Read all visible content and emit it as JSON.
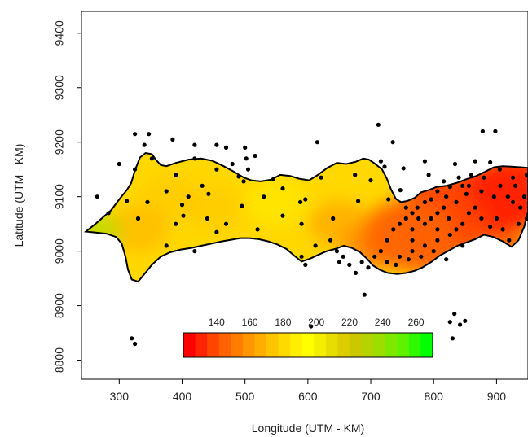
{
  "map": {
    "xlabel": "Longitude (UTM - KM)",
    "ylabel": "Latitude (UTM - KM)",
    "x_ticks": [
      300,
      400,
      500,
      600,
      700,
      800,
      900
    ],
    "y_ticks": [
      8800,
      8900,
      9000,
      9100,
      9200,
      9300,
      9400
    ],
    "x_tick_labels": [
      "300",
      "400",
      "500",
      "600",
      "700",
      "800",
      "900"
    ],
    "y_tick_labels": [
      "8800",
      "8900",
      "9000",
      "9100",
      "9200",
      "9300",
      "9400"
    ],
    "xlim": [
      240,
      950
    ],
    "ylim": [
      8765,
      9440
    ],
    "region_color_low": "#ff3b00",
    "region_color_high": "#ffd800",
    "region_outline_color": "#000000",
    "station_color": "#000000"
  },
  "legend": {
    "labels": [
      "140",
      "160",
      "180",
      "200",
      "220",
      "240",
      "260"
    ],
    "label_values": [
      140,
      160,
      180,
      200,
      220,
      240,
      260
    ],
    "range": [
      120,
      270
    ],
    "colors": [
      "#ff0000",
      "#ff2400",
      "#ff4600",
      "#ff6200",
      "#ff7c00",
      "#ff9500",
      "#ffad00",
      "#ffc400",
      "#ffda00",
      "#ffee00",
      "#ffff00",
      "#f4ef00",
      "#e8dd00",
      "#ddcc00",
      "#ccc800",
      "#b5d300",
      "#9cde00",
      "#7ee900",
      "#5ef200",
      "#2ff900",
      "#00ff00"
    ]
  },
  "chart_data": {
    "type": "scatter",
    "xlabel": "Longitude (UTM - KM)",
    "ylabel": "Latitude (UTM - KM)",
    "xlim": [
      240,
      950
    ],
    "ylim": [
      8765,
      9440
    ],
    "boundary": [
      [
        247,
        9036
      ],
      [
        262,
        9050
      ],
      [
        287,
        9075
      ],
      [
        302,
        9098
      ],
      [
        312,
        9112
      ],
      [
        319,
        9125
      ],
      [
        325,
        9148
      ],
      [
        333,
        9172
      ],
      [
        342,
        9180
      ],
      [
        352,
        9178
      ],
      [
        358,
        9168
      ],
      [
        366,
        9158
      ],
      [
        375,
        9156
      ],
      [
        390,
        9162
      ],
      [
        410,
        9168
      ],
      [
        430,
        9170
      ],
      [
        448,
        9166
      ],
      [
        466,
        9156
      ],
      [
        482,
        9146
      ],
      [
        498,
        9135
      ],
      [
        510,
        9130
      ],
      [
        525,
        9128
      ],
      [
        541,
        9131
      ],
      [
        556,
        9140
      ],
      [
        572,
        9138
      ],
      [
        586,
        9133
      ],
      [
        602,
        9130
      ],
      [
        616,
        9140
      ],
      [
        631,
        9153
      ],
      [
        646,
        9162
      ],
      [
        661,
        9160
      ],
      [
        676,
        9164
      ],
      [
        688,
        9170
      ],
      [
        697,
        9168
      ],
      [
        705,
        9162
      ],
      [
        718,
        9150
      ],
      [
        726,
        9132
      ],
      [
        732,
        9114
      ],
      [
        740,
        9096
      ],
      [
        748,
        9090
      ],
      [
        758,
        9092
      ],
      [
        770,
        9098
      ],
      [
        780,
        9108
      ],
      [
        792,
        9112
      ],
      [
        805,
        9118
      ],
      [
        820,
        9120
      ],
      [
        836,
        9125
      ],
      [
        852,
        9132
      ],
      [
        868,
        9138
      ],
      [
        882,
        9146
      ],
      [
        896,
        9154
      ],
      [
        910,
        9156
      ],
      [
        924,
        9155
      ],
      [
        938,
        9154
      ],
      [
        950,
        9153
      ],
      [
        950,
        9072
      ],
      [
        944,
        9045
      ],
      [
        935,
        9020
      ],
      [
        924,
        9008
      ],
      [
        910,
        9018
      ],
      [
        895,
        9026
      ],
      [
        880,
        9030
      ],
      [
        866,
        9022
      ],
      [
        852,
        9016
      ],
      [
        838,
        9010
      ],
      [
        824,
        9001
      ],
      [
        810,
        8992
      ],
      [
        796,
        8980
      ],
      [
        782,
        8970
      ],
      [
        770,
        8964
      ],
      [
        757,
        8960
      ],
      [
        742,
        8958
      ],
      [
        727,
        8960
      ],
      [
        714,
        8966
      ],
      [
        703,
        8974
      ],
      [
        695,
        8985
      ],
      [
        683,
        8998
      ],
      [
        670,
        9006
      ],
      [
        657,
        9010
      ],
      [
        643,
        9004
      ],
      [
        630,
        9000
      ],
      [
        616,
        8993
      ],
      [
        603,
        8986
      ],
      [
        590,
        8981
      ],
      [
        578,
        8992
      ],
      [
        566,
        9004
      ],
      [
        552,
        9012
      ],
      [
        537,
        9018
      ],
      [
        522,
        9022
      ],
      [
        507,
        9024
      ],
      [
        492,
        9024
      ],
      [
        478,
        9021
      ],
      [
        463,
        9018
      ],
      [
        447,
        9014
      ],
      [
        431,
        9010
      ],
      [
        415,
        9006
      ],
      [
        398,
        9003
      ],
      [
        381,
        8998
      ],
      [
        366,
        8990
      ],
      [
        352,
        8975
      ],
      [
        340,
        8958
      ],
      [
        330,
        8944
      ],
      [
        320,
        8948
      ],
      [
        314,
        8966
      ],
      [
        310,
        8990
      ],
      [
        304,
        9014
      ],
      [
        295,
        9026
      ],
      [
        280,
        9032
      ],
      [
        264,
        9034
      ]
    ],
    "hotspots": [
      {
        "x": 880,
        "y": 9090,
        "value": 130
      },
      {
        "x": 820,
        "y": 9070,
        "value": 135
      },
      {
        "x": 930,
        "y": 9110,
        "value": 130
      },
      {
        "x": 760,
        "y": 9030,
        "value": 140
      },
      {
        "x": 700,
        "y": 9010,
        "value": 145
      },
      {
        "x": 650,
        "y": 9050,
        "value": 160
      },
      {
        "x": 550,
        "y": 9090,
        "value": 185
      },
      {
        "x": 450,
        "y": 9080,
        "value": 175
      },
      {
        "x": 380,
        "y": 9100,
        "value": 170
      },
      {
        "x": 330,
        "y": 9040,
        "value": 165
      },
      {
        "x": 255,
        "y": 9036,
        "value": 240
      }
    ],
    "stations": [
      [
        265,
        9100
      ],
      [
        283,
        9070
      ],
      [
        300,
        9160
      ],
      [
        325,
        9215
      ],
      [
        347,
        9215
      ],
      [
        340,
        9195
      ],
      [
        312,
        9092
      ],
      [
        330,
        9060
      ],
      [
        352,
        9170
      ],
      [
        385,
        9205
      ],
      [
        325,
        9150
      ],
      [
        345,
        9090
      ],
      [
        375,
        9110
      ],
      [
        390,
        9140
      ],
      [
        402,
        9065
      ],
      [
        390,
        9050
      ],
      [
        375,
        9010
      ],
      [
        400,
        9085
      ],
      [
        410,
        9100
      ],
      [
        420,
        9195
      ],
      [
        420,
        9170
      ],
      [
        432,
        9120
      ],
      [
        442,
        9105
      ],
      [
        440,
        9060
      ],
      [
        420,
        9000
      ],
      [
        455,
        9195
      ],
      [
        470,
        9190
      ],
      [
        455,
        9150
      ],
      [
        480,
        9160
      ],
      [
        490,
        9137
      ],
      [
        498,
        9128
      ],
      [
        500,
        9190
      ],
      [
        502,
        9170
      ],
      [
        505,
        9150
      ],
      [
        495,
        9083
      ],
      [
        516,
        9175
      ],
      [
        530,
        9100
      ],
      [
        545,
        9132
      ],
      [
        560,
        9115
      ],
      [
        588,
        9090
      ],
      [
        590,
        9050
      ],
      [
        615,
        9200
      ],
      [
        621,
        9135
      ],
      [
        640,
        9060
      ],
      [
        612,
        9010
      ],
      [
        590,
        8990
      ],
      [
        596,
        8975
      ],
      [
        605,
        8862
      ],
      [
        636,
        8836
      ],
      [
        675,
        9140
      ],
      [
        680,
        9092
      ],
      [
        700,
        9130
      ],
      [
        712,
        9232
      ],
      [
        716,
        9165
      ],
      [
        722,
        9155
      ],
      [
        728,
        9095
      ],
      [
        735,
        9200
      ],
      [
        747,
        9112
      ],
      [
        752,
        9152
      ],
      [
        766,
        9020
      ],
      [
        774,
        9080
      ],
      [
        786,
        9165
      ],
      [
        792,
        9140
      ],
      [
        796,
        9095
      ],
      [
        806,
        9040
      ],
      [
        816,
        9128
      ],
      [
        826,
        9118
      ],
      [
        834,
        9160
      ],
      [
        846,
        9120
      ],
      [
        852,
        9105
      ],
      [
        866,
        9165
      ],
      [
        878,
        9220
      ],
      [
        890,
        9163
      ],
      [
        898,
        9220
      ],
      [
        905,
        9150
      ],
      [
        918,
        9100
      ],
      [
        926,
        9135
      ],
      [
        930,
        9120
      ],
      [
        938,
        9080
      ],
      [
        944,
        9100
      ],
      [
        948,
        9140
      ],
      [
        948,
        9060
      ],
      [
        935,
        9050
      ],
      [
        920,
        9020
      ],
      [
        910,
        9040
      ],
      [
        900,
        9060
      ],
      [
        890,
        9045
      ],
      [
        876,
        9060
      ],
      [
        866,
        9080
      ],
      [
        856,
        9070
      ],
      [
        846,
        9050
      ],
      [
        836,
        9040
      ],
      [
        824,
        9060
      ],
      [
        816,
        9080
      ],
      [
        806,
        9070
      ],
      [
        796,
        9060
      ],
      [
        786,
        9050
      ],
      [
        776,
        9060
      ],
      [
        766,
        9070
      ],
      [
        756,
        9060
      ],
      [
        746,
        9050
      ],
      [
        736,
        9040
      ],
      [
        726,
        9020
      ],
      [
        716,
        9000
      ],
      [
        706,
        8990
      ],
      [
        696,
        8970
      ],
      [
        686,
        8980
      ],
      [
        676,
        8960
      ],
      [
        666,
        8975
      ],
      [
        656,
        8990
      ],
      [
        646,
        9000
      ],
      [
        636,
        9020
      ],
      [
        726,
        8980
      ],
      [
        746,
        8990
      ],
      [
        766,
        9000
      ],
      [
        786,
        9010
      ],
      [
        806,
        9020
      ],
      [
        826,
        9030
      ],
      [
        846,
        9010
      ],
      [
        766,
        9040
      ],
      [
        756,
        9080
      ],
      [
        786,
        9090
      ],
      [
        806,
        9110
      ],
      [
        836,
        9090
      ],
      [
        856,
        9120
      ],
      [
        876,
        9110
      ],
      [
        896,
        9100
      ],
      [
        906,
        9120
      ],
      [
        926,
        9090
      ],
      [
        880,
        9135
      ],
      [
        860,
        9140
      ],
      [
        840,
        9135
      ],
      [
        820,
        9100
      ],
      [
        800,
        9000
      ],
      [
        780,
        8990
      ],
      [
        760,
        8985
      ],
      [
        740,
        8975
      ],
      [
        820,
        8985
      ],
      [
        826,
        8870
      ],
      [
        833,
        8885
      ],
      [
        850,
        8872
      ],
      [
        830,
        8840
      ],
      [
        842,
        8865
      ],
      [
        650,
        8980
      ],
      [
        690,
        8920
      ],
      [
        320,
        8840
      ],
      [
        325,
        8830
      ],
      [
        596,
        9095
      ],
      [
        560,
        9065
      ],
      [
        520,
        9040
      ],
      [
        470,
        9050
      ],
      [
        455,
        9035
      ]
    ]
  }
}
